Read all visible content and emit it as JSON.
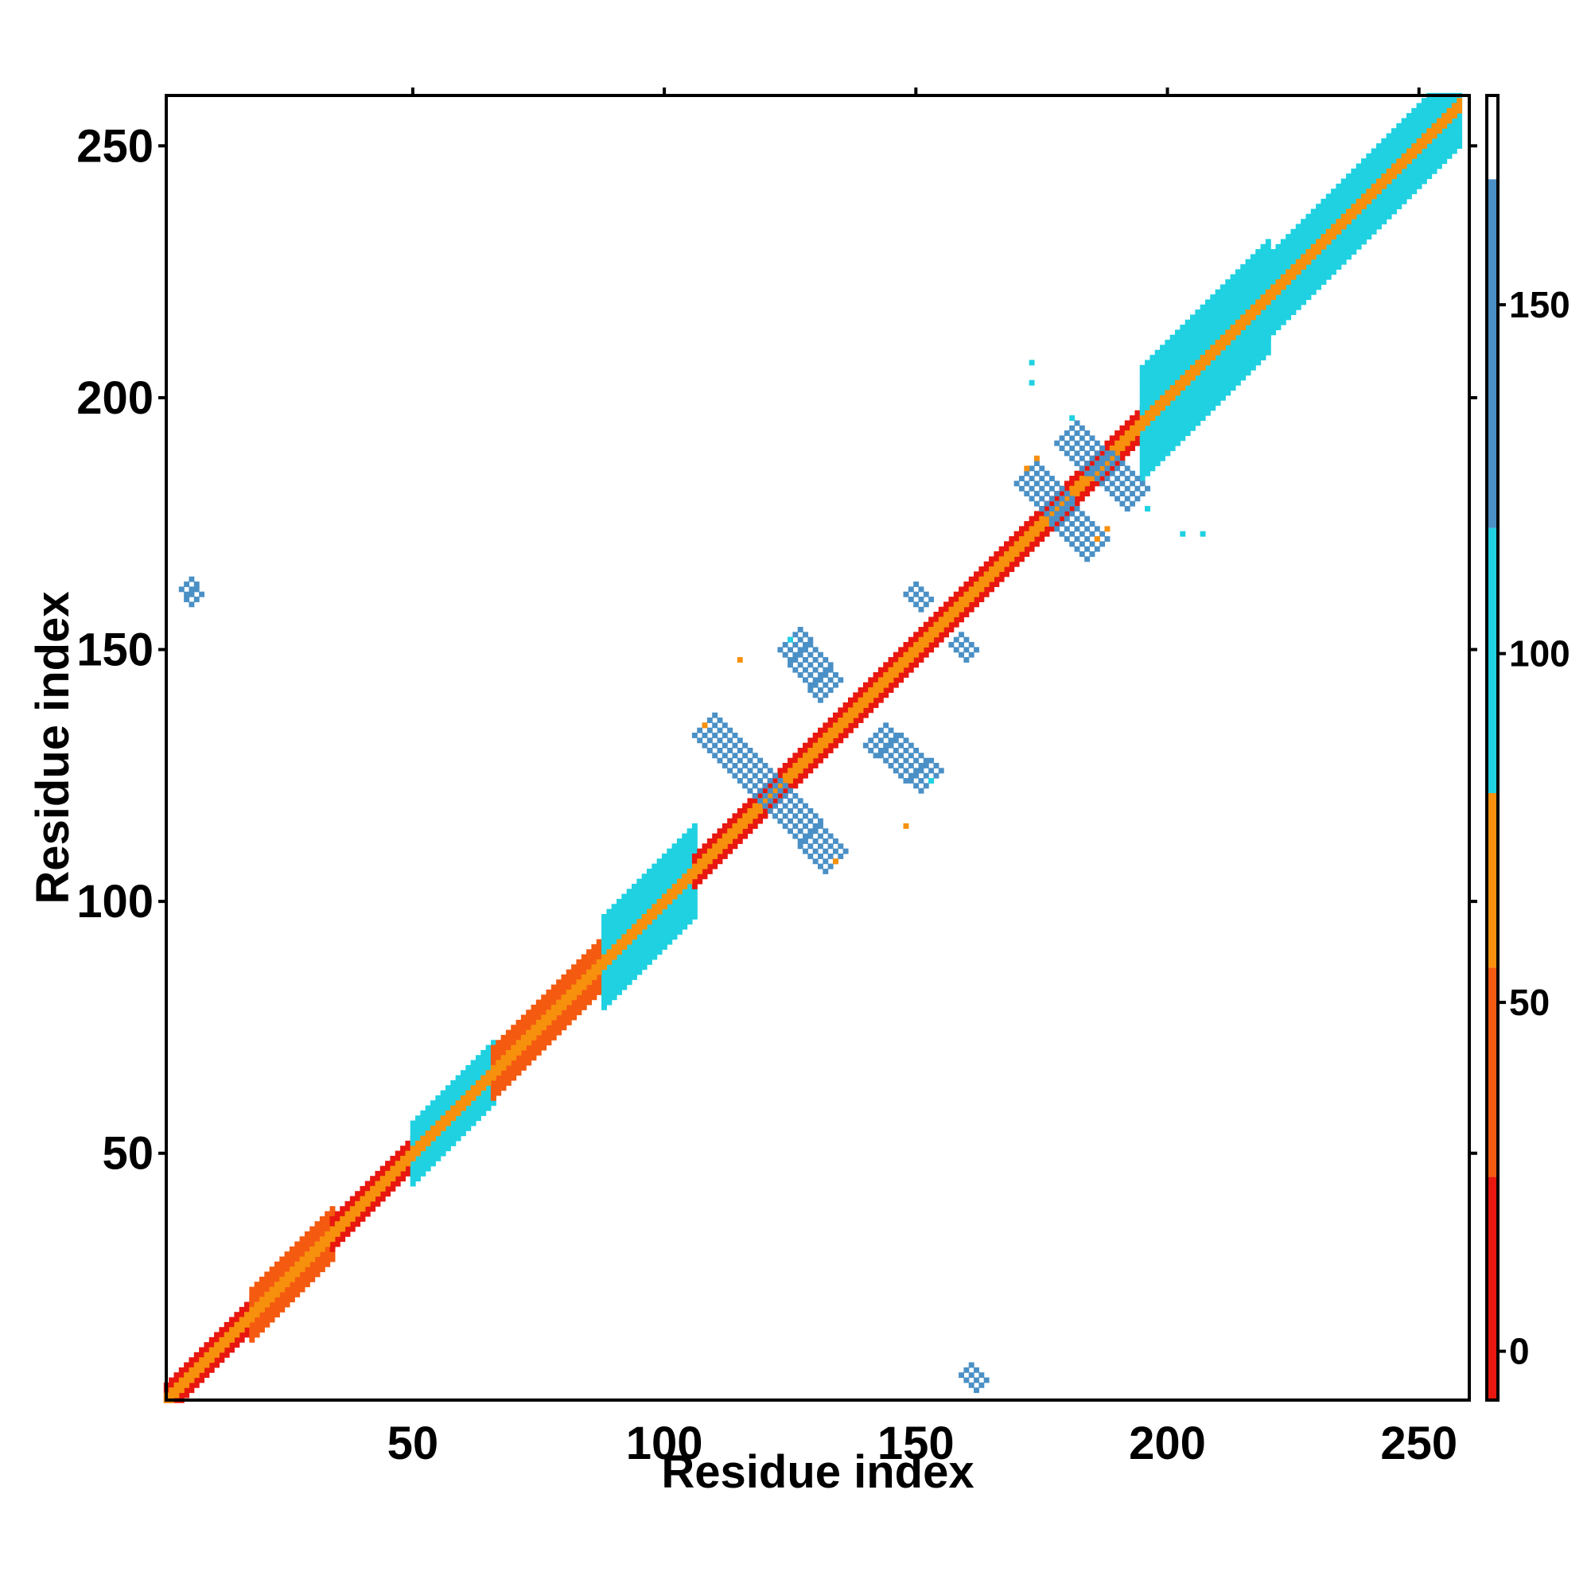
{
  "chart_data": {
    "type": "heatmap",
    "title": "",
    "xlabel": "Residue index",
    "ylabel": "Residue index",
    "xlim": [
      1,
      260
    ],
    "ylim": [
      1,
      260
    ],
    "xticks": [
      50,
      100,
      150,
      200,
      250
    ],
    "yticks": [
      50,
      100,
      150,
      200,
      250
    ],
    "grid": false,
    "colorbar": {
      "range": [
        -7,
        180
      ],
      "ticks": [
        0,
        50,
        100,
        150
      ],
      "bands": [
        {
          "from": -7,
          "to": 25,
          "color": "#e8170f"
        },
        {
          "from": 25,
          "to": 55,
          "color": "#f45a10"
        },
        {
          "from": 55,
          "to": 80,
          "color": "#f7900d"
        },
        {
          "from": 80,
          "to": 118,
          "color": "#1fd1e1"
        },
        {
          "from": 118,
          "to": 168,
          "color": "#4a90c6"
        },
        {
          "from": 168,
          "to": 180,
          "color": "#ffffff"
        }
      ]
    },
    "regions": [
      {
        "name": "diagonal helix",
        "kind": "diag",
        "start": 1,
        "end": 30,
        "value": 15,
        "width": 3
      },
      {
        "name": "diagonal helix",
        "kind": "diag",
        "start": 18,
        "end": 34,
        "value": 45,
        "width": 5
      },
      {
        "name": "diagonal helix",
        "kind": "diag",
        "start": 34,
        "end": 50,
        "value": 15,
        "width": 3
      },
      {
        "name": "diagonal helix",
        "kind": "diag",
        "start": 50,
        "end": 66,
        "value": 90,
        "width": 6
      },
      {
        "name": "diagonal helix",
        "kind": "diag",
        "start": 66,
        "end": 88,
        "value": 40,
        "width": 5
      },
      {
        "name": "diagonal helix",
        "kind": "diag",
        "start": 88,
        "end": 106,
        "value": 95,
        "width": 9
      },
      {
        "name": "diagonal helix",
        "kind": "diag",
        "start": 106,
        "end": 195,
        "value": 5,
        "width": 3
      },
      {
        "name": "diagonal helix",
        "kind": "diag",
        "start": 195,
        "end": 220,
        "value": 100,
        "width": 11
      },
      {
        "name": "diagonal helix",
        "kind": "diag",
        "start": 220,
        "end": 258,
        "value": 90,
        "width": 8
      },
      {
        "name": "diagonal core",
        "kind": "diag",
        "start": 1,
        "end": 258,
        "value": 70,
        "width": 1
      },
      {
        "name": "sheet",
        "kind": "anti",
        "x1": 108,
        "y1": 135,
        "x2": 122,
        "y2": 121,
        "value": 140,
        "width": 2
      },
      {
        "name": "sheet",
        "kind": "anti",
        "x1": 123,
        "y1": 120,
        "x2": 134,
        "y2": 108,
        "value": 140,
        "width": 2
      },
      {
        "name": "sheet",
        "kind": "anti",
        "x1": 125,
        "y1": 152,
        "x2": 133,
        "y2": 142,
        "value": 140,
        "width": 2
      },
      {
        "name": "sheet",
        "kind": "anti",
        "x1": 142,
        "y1": 133,
        "x2": 153,
        "y2": 124,
        "value": 140,
        "width": 2
      },
      {
        "name": "sheet",
        "kind": "anti",
        "x1": 172,
        "y1": 185,
        "x2": 186,
        "y2": 170,
        "value": 140,
        "width": 2
      },
      {
        "name": "sheet",
        "kind": "anti",
        "x1": 180,
        "y1": 193,
        "x2": 194,
        "y2": 180,
        "value": 140,
        "width": 2
      },
      {
        "name": "sheet",
        "kind": "anti",
        "x1": 149,
        "y1": 162,
        "x2": 152,
        "y2": 159,
        "value": 140,
        "width": 1
      },
      {
        "name": "sheet",
        "kind": "anti",
        "x1": 158,
        "y1": 152,
        "x2": 161,
        "y2": 149,
        "value": 140,
        "width": 1
      },
      {
        "name": "sheet",
        "kind": "anti",
        "x1": 5,
        "y1": 163,
        "x2": 7,
        "y2": 160,
        "value": 140,
        "width": 1
      },
      {
        "name": "sheet",
        "kind": "anti",
        "x1": 160,
        "y1": 7,
        "x2": 163,
        "y2": 4,
        "value": 140,
        "width": 1
      }
    ],
    "points": [
      {
        "x": 108,
        "y": 135,
        "value": 70
      },
      {
        "x": 115,
        "y": 148,
        "value": 60
      },
      {
        "x": 134,
        "y": 108,
        "value": 70
      },
      {
        "x": 148,
        "y": 115,
        "value": 60
      },
      {
        "x": 153,
        "y": 124,
        "value": 100
      },
      {
        "x": 125,
        "y": 152,
        "value": 100
      },
      {
        "x": 173,
        "y": 207,
        "value": 100
      },
      {
        "x": 173,
        "y": 203,
        "value": 100
      },
      {
        "x": 181,
        "y": 196,
        "value": 100
      },
      {
        "x": 196,
        "y": 178,
        "value": 100
      },
      {
        "x": 203,
        "y": 173,
        "value": 100
      },
      {
        "x": 207,
        "y": 173,
        "value": 100
      },
      {
        "x": 172,
        "y": 186,
        "value": 60
      },
      {
        "x": 174,
        "y": 188,
        "value": 60
      },
      {
        "x": 186,
        "y": 172,
        "value": 60
      },
      {
        "x": 188,
        "y": 174,
        "value": 60
      }
    ]
  }
}
